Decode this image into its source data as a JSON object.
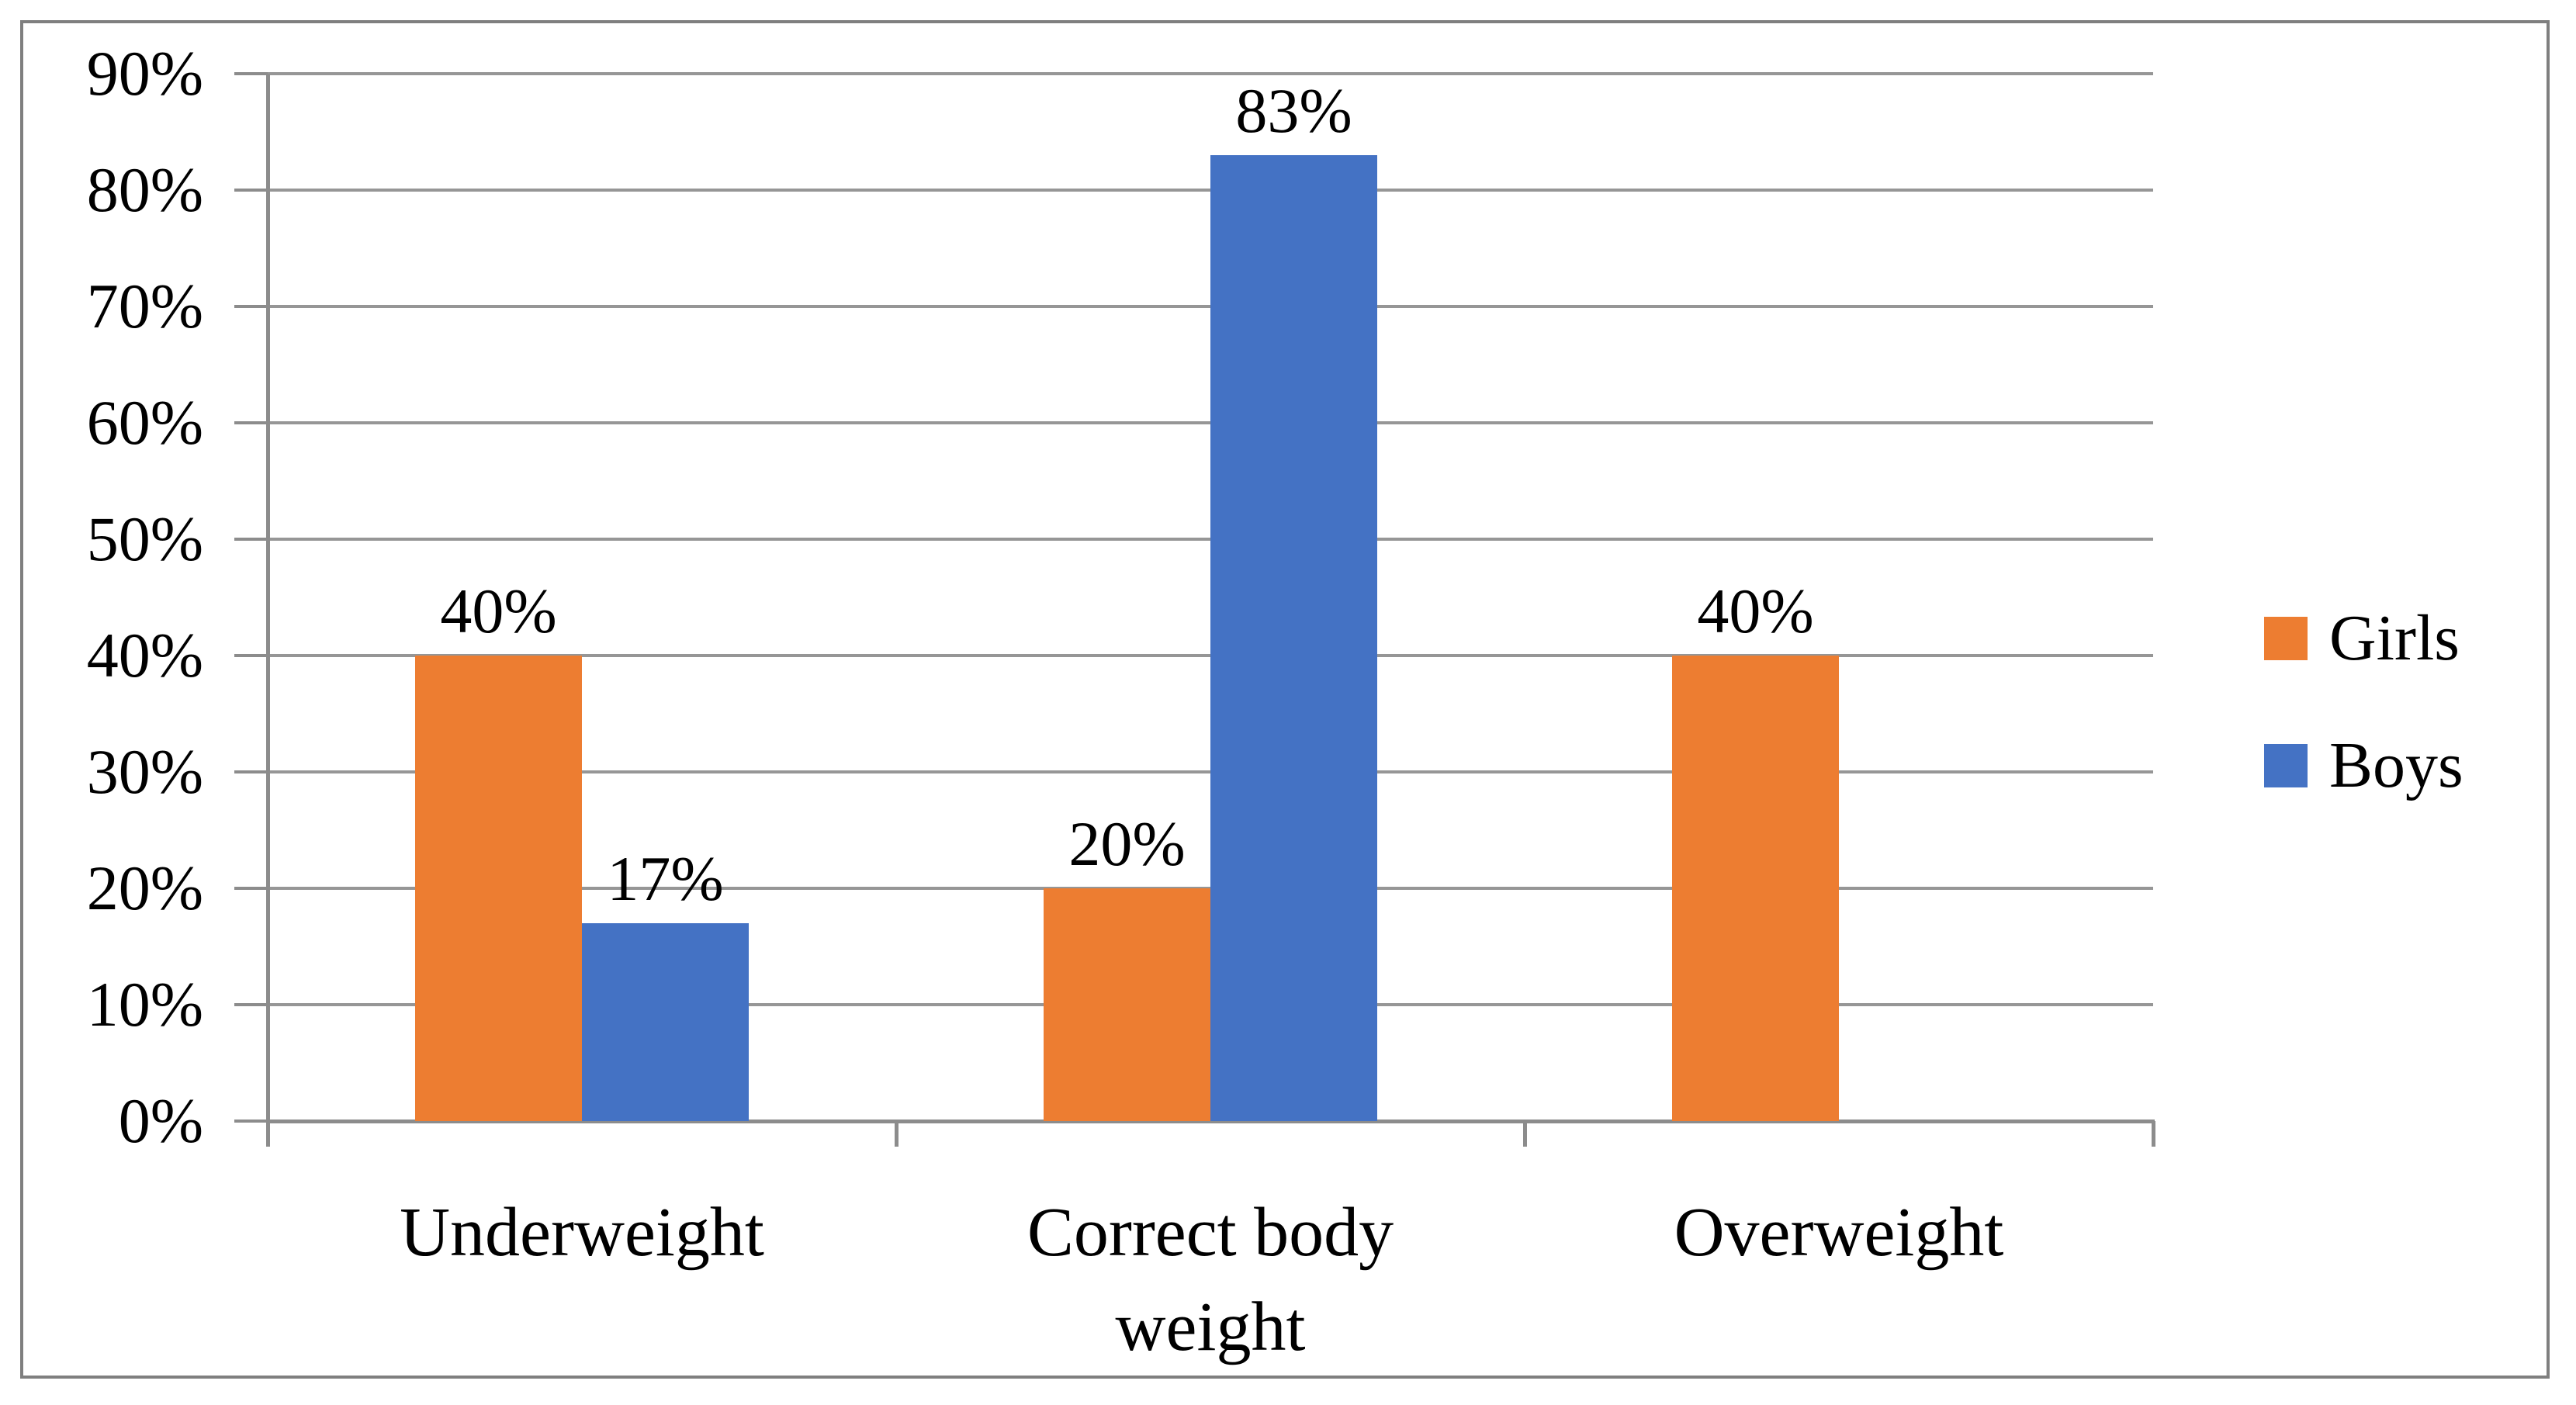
{
  "chart_data": {
    "type": "bar",
    "title": "",
    "categories": [
      "Underweight",
      "Correct body weight",
      "Overweight"
    ],
    "category_display_lines": [
      [
        "Underweight"
      ],
      [
        "Correct body",
        "weight"
      ],
      [
        "Overweight"
      ]
    ],
    "series": [
      {
        "name": "Girls",
        "color": "#ED7D31",
        "values": [
          40,
          20,
          40
        ],
        "data_labels": [
          "40%",
          "20%",
          "40%"
        ]
      },
      {
        "name": "Boys",
        "color": "#4472C4",
        "values": [
          17,
          83,
          null
        ],
        "data_labels": [
          "17%",
          "83%",
          null
        ]
      }
    ],
    "y_axis": {
      "min": 0,
      "max": 90,
      "step": 10,
      "tick_labels": [
        "0%",
        "10%",
        "20%",
        "30%",
        "40%",
        "50%",
        "60%",
        "70%",
        "80%",
        "90%"
      ]
    },
    "grid": true,
    "legend_position": "right",
    "legend_labels": [
      "Girls",
      "Boys"
    ]
  },
  "styles": {
    "girls_color": "#ED7D31",
    "boys_color": "#4472C4",
    "gridline_color": "#969696",
    "axis_color": "#8C8C8C",
    "border_color": "#7F7F7F",
    "text_color": "#000000",
    "background_color": "#FFFFFF"
  }
}
